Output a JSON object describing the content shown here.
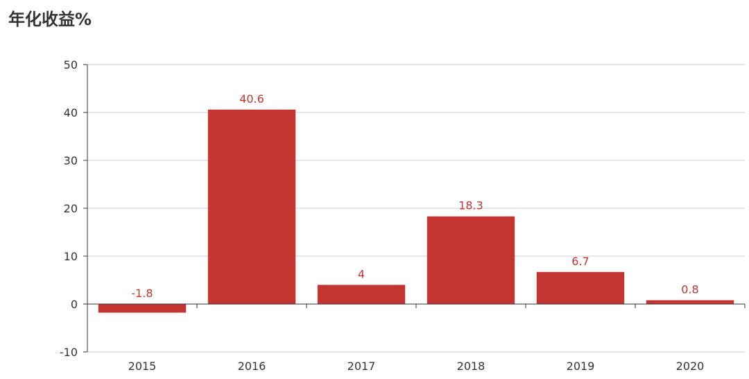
{
  "chart_data": {
    "type": "bar",
    "title": "年化收益%",
    "categories": [
      "2015",
      "2016",
      "2017",
      "2018",
      "2019",
      "2020"
    ],
    "values": [
      -1.8,
      40.6,
      4,
      18.3,
      6.7,
      0.8
    ],
    "ylim": [
      -10,
      50
    ],
    "yticks": [
      -10,
      0,
      10,
      20,
      30,
      40,
      50
    ],
    "xlabel": "",
    "ylabel": "",
    "grid": true,
    "colors": {
      "bar": "#c23531",
      "label": "#c23531",
      "grid": "#cccccc",
      "axis": "#333333"
    }
  }
}
